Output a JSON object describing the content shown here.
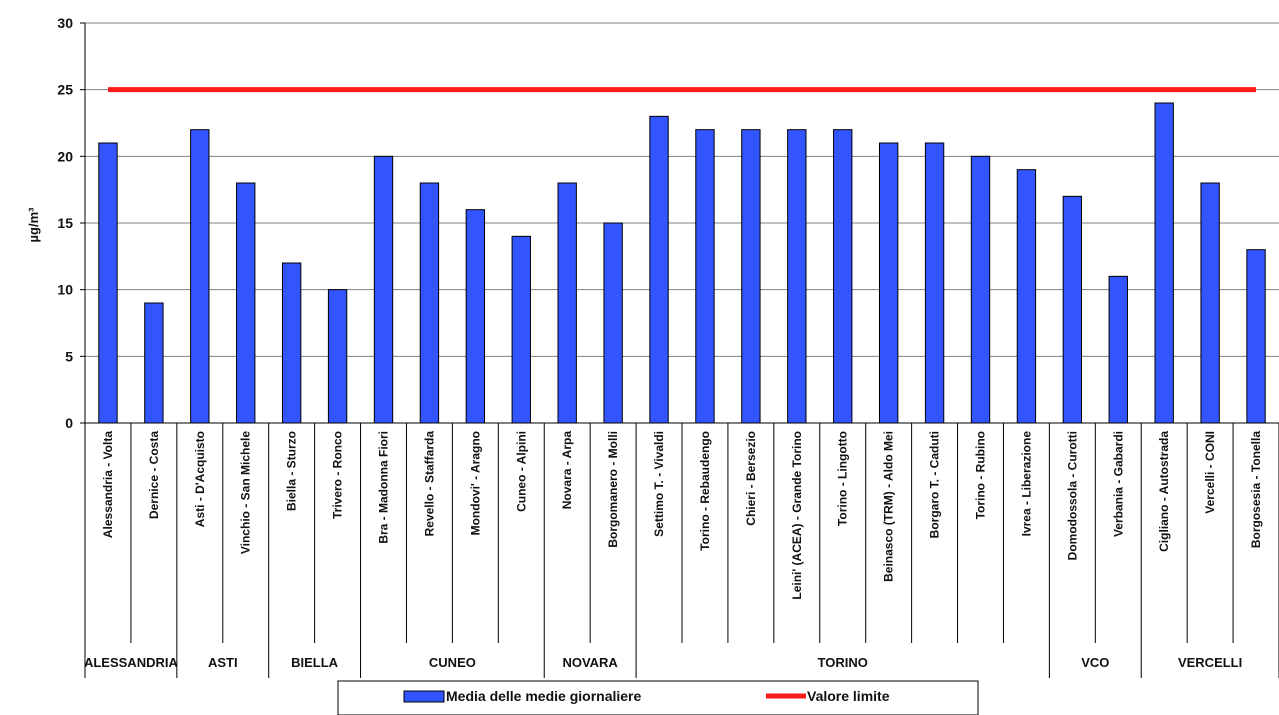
{
  "chart_data": {
    "type": "bar",
    "title": "",
    "ylabel": "µg/m³",
    "ylim": [
      0,
      30
    ],
    "yticks": [
      0,
      5,
      10,
      15,
      20,
      25,
      30
    ],
    "grid": true,
    "legend_position": "bottom",
    "categories": [
      "Alessandria - Volta",
      "Dernice - Costa",
      "Asti - D'Acquisto",
      "Vinchio - San Michele",
      "Biella - Sturzo",
      "Trivero - Ronco",
      "Bra - Madonna Fiori",
      "Revello - Staffarda",
      "Mondovi' - Aragno",
      "Cuneo - Alpini",
      "Novara - Arpa",
      "Borgomanero - Molli",
      "Settimo T. - Vivaldi",
      "Torino - Rebaudengo",
      "Chieri - Bersezio",
      "Leini' (ACEA) - Grande Torino",
      "Torino - Lingotto",
      "Beinasco (TRM) - Aldo Mei",
      "Borgaro T. - Caduti",
      "Torino - Rubino",
      "Ivrea - Liberazione",
      "Domodossola - Curotti",
      "Verbania - Gabardi",
      "Cigliano - Autostrada",
      "Vercelli - CONI",
      "Borgosesia - Tonella"
    ],
    "groups": [
      {
        "name": "ALESSANDRIA",
        "start": 0,
        "end": 1
      },
      {
        "name": "ASTI",
        "start": 2,
        "end": 3
      },
      {
        "name": "BIELLA",
        "start": 4,
        "end": 5
      },
      {
        "name": "CUNEO",
        "start": 6,
        "end": 9
      },
      {
        "name": "NOVARA",
        "start": 10,
        "end": 11
      },
      {
        "name": "TORINO",
        "start": 12,
        "end": 20
      },
      {
        "name": "VCO",
        "start": 21,
        "end": 22
      },
      {
        "name": "VERCELLI",
        "start": 23,
        "end": 25
      }
    ],
    "series": [
      {
        "name": "Media delle medie giornaliere",
        "color": "#3355ff",
        "values": [
          21,
          9,
          22,
          18,
          12,
          10,
          20,
          18,
          16,
          14,
          18,
          15,
          23,
          22,
          22,
          22,
          22,
          21,
          21,
          20,
          19,
          17,
          11,
          24,
          18,
          13
        ]
      }
    ],
    "limit_line": {
      "name": "Valore limite",
      "value": 25,
      "color": "#ff1a1a"
    }
  }
}
